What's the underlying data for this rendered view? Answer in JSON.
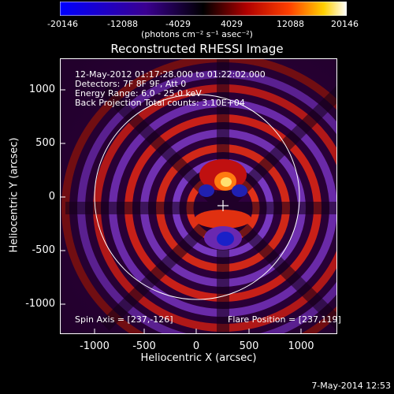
{
  "colorbar": {
    "ticks": [
      "-20146",
      "-12088",
      "-4029",
      "4029",
      "12088",
      "20146"
    ],
    "units": "(photons cm⁻² s⁻¹ asec⁻²)"
  },
  "plot": {
    "title": "Reconstructed RHESSI Image",
    "xlabel": "Heliocentric X (arcsec)",
    "ylabel": "Heliocentric Y (arcsec)",
    "yticks": [
      "1000",
      "500",
      "0",
      "-500",
      "-1000"
    ],
    "xticks": [
      "-1000",
      "-500",
      "0",
      "500",
      "1000"
    ],
    "info": [
      "12-May-2012 01:17:28.000 to 01:22:02.000",
      "Detectors: 7F 8F 9F, Att 0",
      "Energy Range: 6.0 - 25.0 keV",
      "Back Projection    Total counts: 3.10E+04"
    ],
    "spin_axis": "Spin Axis = [237,-126]",
    "flare_position": "Flare Position = [237,119]"
  },
  "footer": {
    "date": "7-May-2014 12:53"
  }
}
